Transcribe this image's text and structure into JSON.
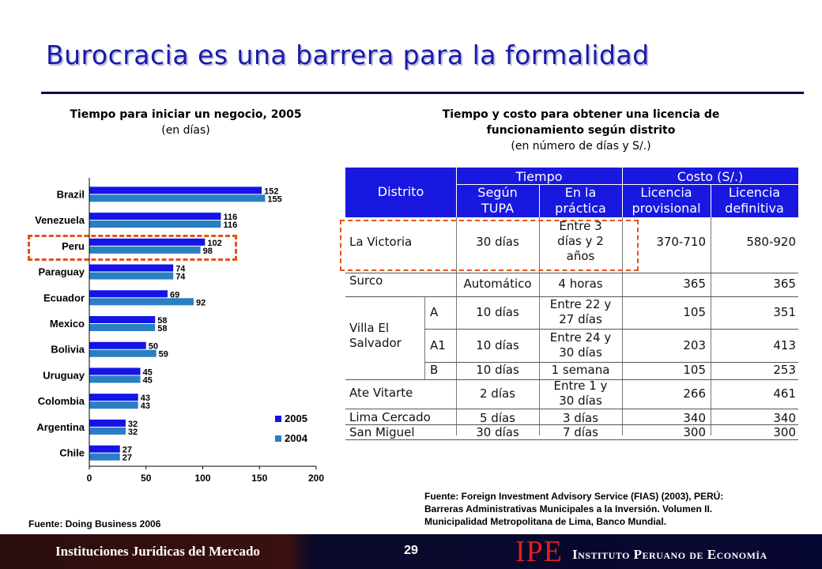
{
  "title": "Burocracia es una barrera para la formalidad",
  "left_heading": {
    "title": "Tiempo para iniciar un negocio, 2005",
    "subtitle": "(en días)"
  },
  "right_heading": {
    "title_line1": "Tiempo y costo para obtener una licencia de",
    "title_line2": "funcionamiento según distrito",
    "subtitle": "(en número de días y S/.)"
  },
  "chart_data": {
    "type": "bar",
    "orientation": "horizontal",
    "categories": [
      "Brazil",
      "Venezuela",
      "Peru",
      "Paraguay",
      "Ecuador",
      "Mexico",
      "Bolivia",
      "Uruguay",
      "Colombia",
      "Argentina",
      "Chile"
    ],
    "series": [
      {
        "name": "2005",
        "values": [
          152,
          116,
          102,
          74,
          69,
          58,
          50,
          45,
          43,
          32,
          27
        ],
        "color": "#1414e6"
      },
      {
        "name": "2004",
        "values": [
          155,
          116,
          98,
          74,
          92,
          58,
          59,
          45,
          43,
          32,
          27
        ],
        "color": "#2a7fc2"
      }
    ],
    "xlim": [
      0,
      200
    ],
    "xticks": [
      "0",
      "50",
      "100",
      "150",
      "200"
    ],
    "legend": "bottom-right",
    "highlight": "Peru"
  },
  "table": {
    "header_groups": {
      "tiempo": "Tiempo",
      "costo": "Costo (S/.)"
    },
    "headers": {
      "distrito": "Distrito",
      "tupa": [
        "Según",
        "TUPA"
      ],
      "practica": [
        "En la",
        "práctica"
      ],
      "provisional": [
        "Licencia",
        "provisional"
      ],
      "definitiva": [
        "Licencia",
        "definitiva"
      ]
    },
    "rows": [
      {
        "distrito": "La Victoria",
        "sub": "",
        "tupa": "30 días",
        "practica": [
          "Entre 3",
          "días y 2",
          "años"
        ],
        "provisional": "370-710",
        "definitiva": "580-920"
      },
      {
        "distrito": "Surco",
        "sub": "",
        "tupa": "Automático",
        "practica": [
          "4 horas"
        ],
        "provisional": "365",
        "definitiva": "365"
      },
      {
        "distrito": "",
        "sub": "A",
        "tupa": "10 días",
        "practica": [
          "Entre 22 y",
          "27 días"
        ],
        "provisional": "105",
        "definitiva": "351"
      },
      {
        "distrito": "",
        "sub": "A1",
        "tupa": "10 días",
        "practica": [
          "Entre 24 y",
          "30 días"
        ],
        "provisional": "203",
        "definitiva": "413"
      },
      {
        "distrito": "",
        "sub": "B",
        "tupa": "10 días",
        "practica": [
          "1 semana"
        ],
        "provisional": "105",
        "definitiva": "253"
      },
      {
        "distrito": "Ate Vitarte",
        "sub": "",
        "tupa": "2 días",
        "practica": [
          "Entre 1 y",
          "30 días"
        ],
        "provisional": "266",
        "definitiva": "461"
      },
      {
        "distrito": "Lima Cercado",
        "sub": "",
        "tupa": "5 días",
        "practica": [
          "3 días"
        ],
        "provisional": "340",
        "definitiva": "340"
      },
      {
        "distrito": "San Miguel",
        "sub": "",
        "tupa": "30 días",
        "practica": [
          "7 días"
        ],
        "provisional": "300",
        "definitiva": "300"
      }
    ],
    "villa_el_salvador": [
      "Villa El",
      "Salvador"
    ]
  },
  "source_left": "Fuente: Doing Business 2006",
  "source_right": [
    "Fuente: Foreign Investment Advisory Service (FIAS) (2003), PERÚ:",
    "Barreras Administrativas Municipales a la Inversión. Volumen II.",
    "Municipalidad Metropolitana de Lima, Banco Mundial."
  ],
  "footer": {
    "left": "Instituciones Jurídicas del Mercado",
    "page": "29",
    "logo": "IPE",
    "org": "Instituto Peruano de Economía"
  },
  "colors": {
    "title": "#1a1aa6",
    "table_header": "#1818e0",
    "highlight": "#e0521c"
  }
}
